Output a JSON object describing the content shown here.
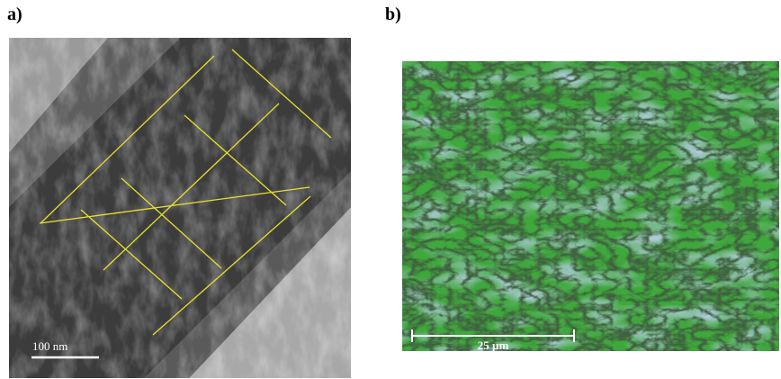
{
  "panels": [
    {
      "label": "a)",
      "scale_bar": "100 nm"
    },
    {
      "label": "b)",
      "scale_bar": "25 µm"
    }
  ]
}
